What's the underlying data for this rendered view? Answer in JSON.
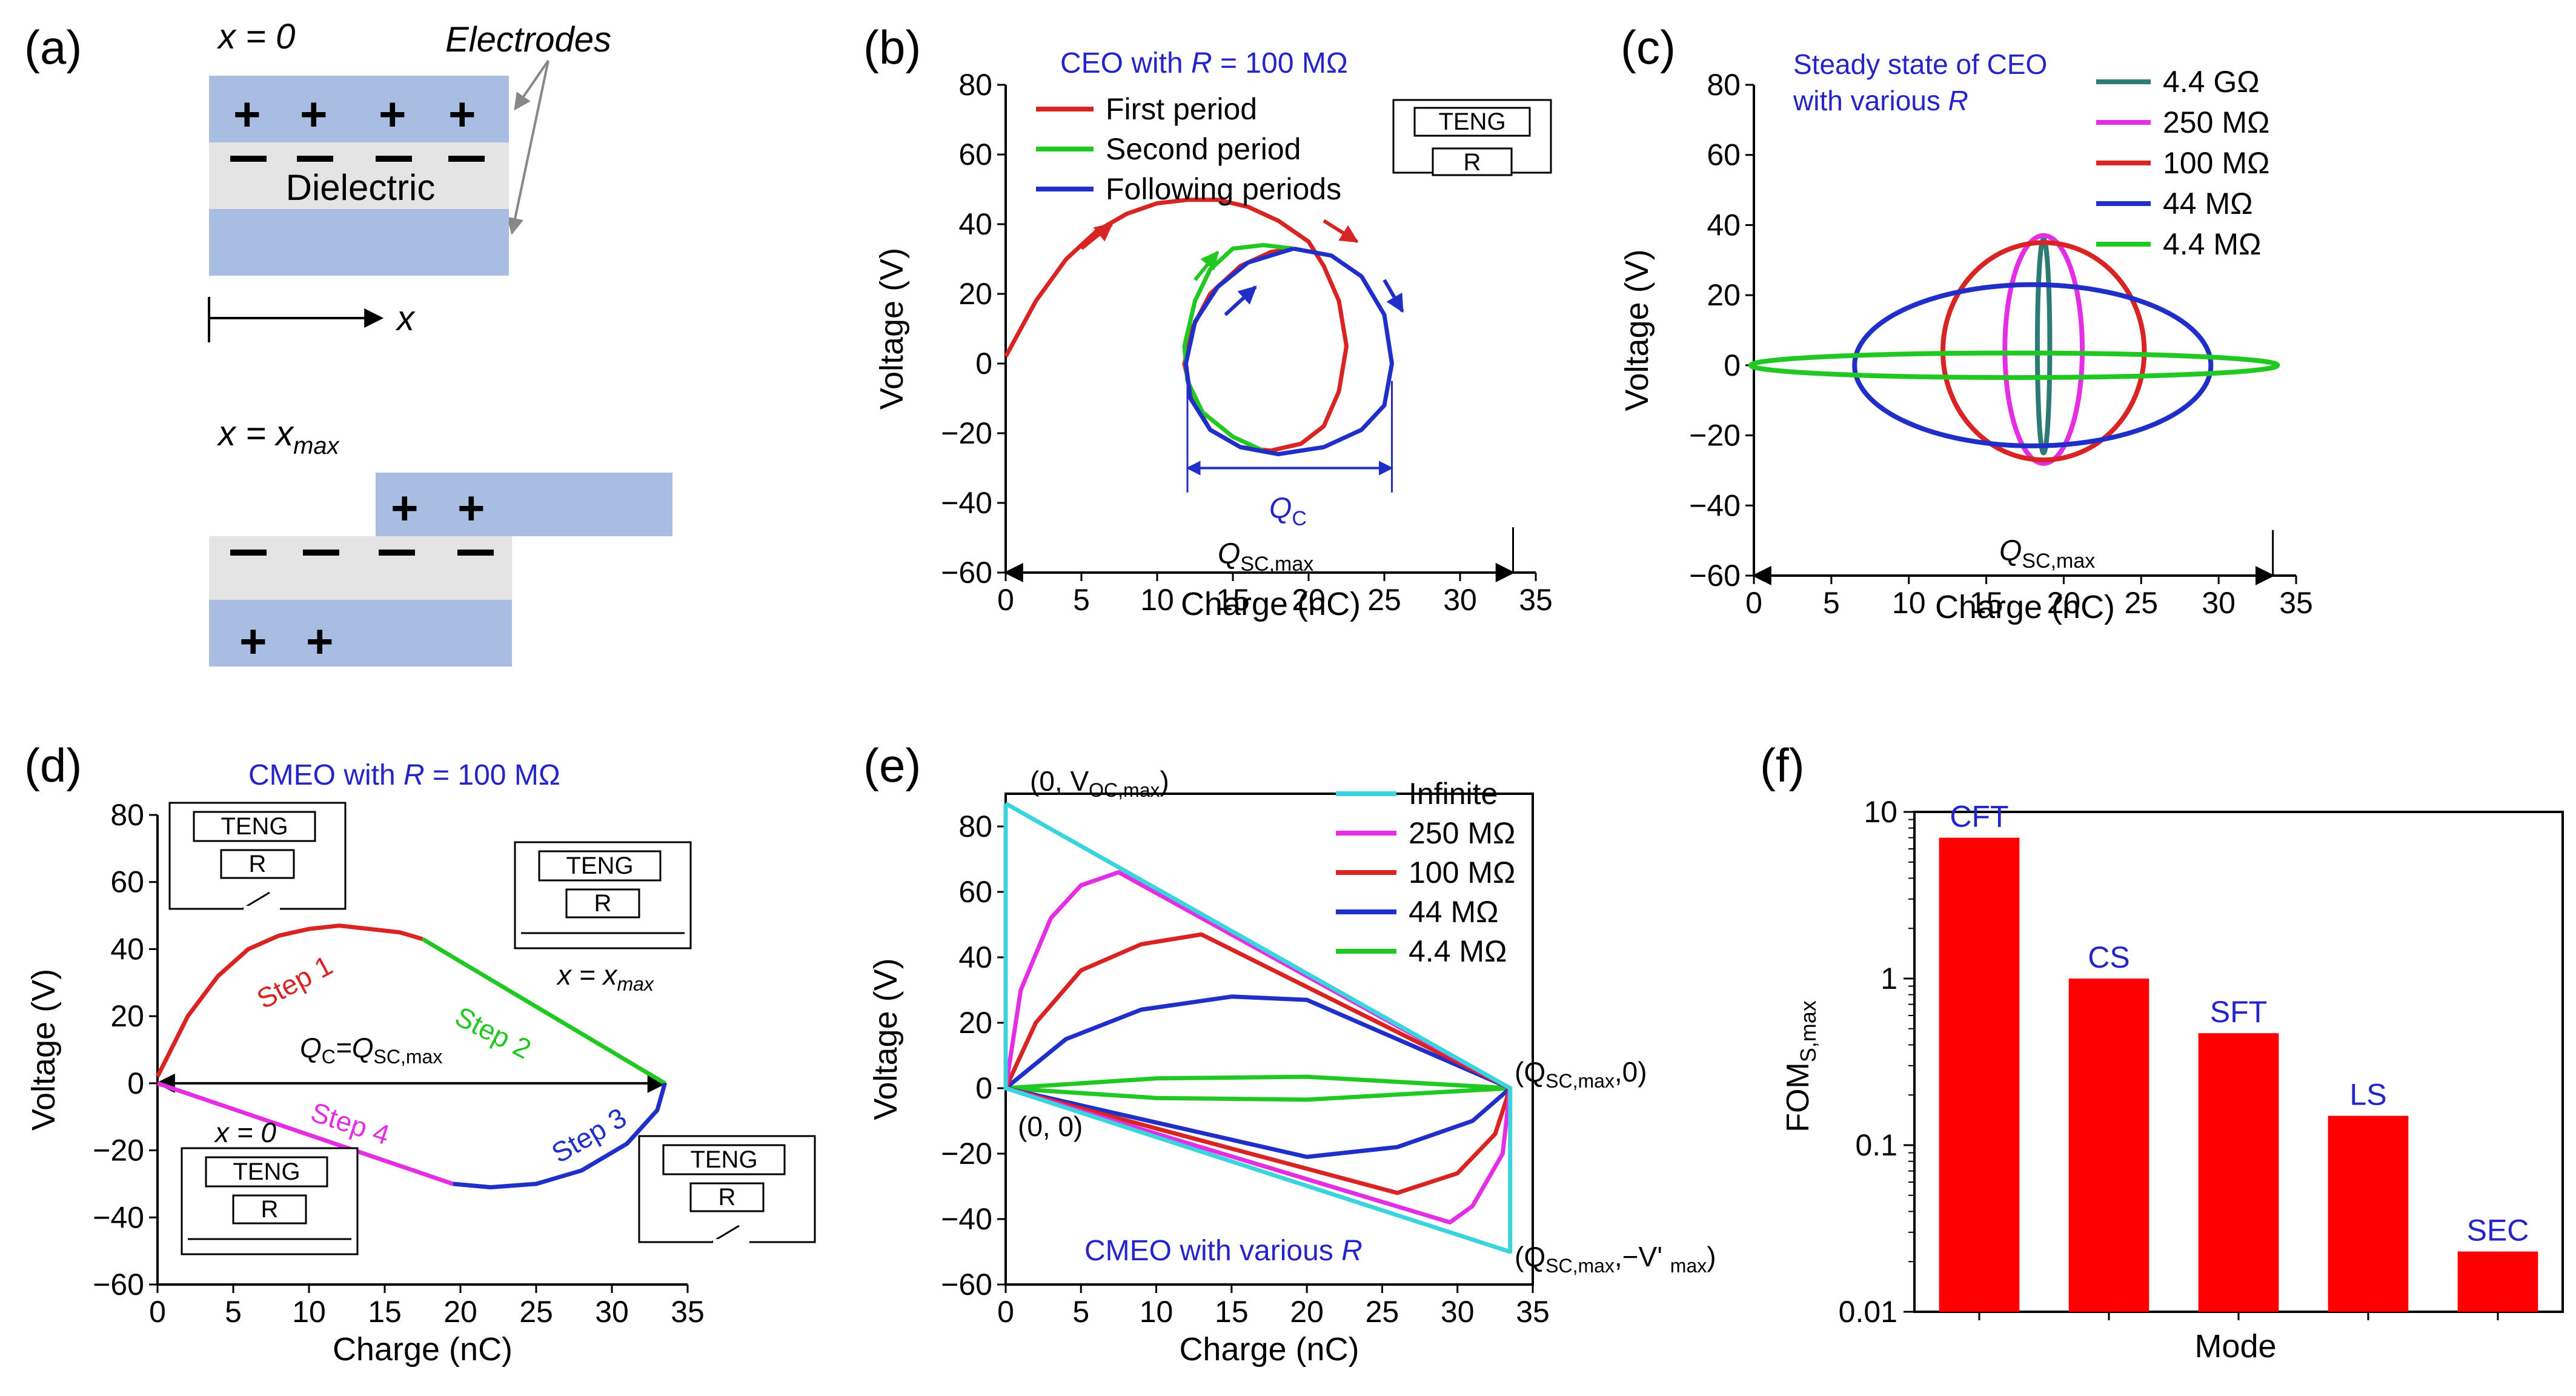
{
  "panel_labels": {
    "a": "(a)",
    "b": "(b)",
    "c": "(c)",
    "d": "(d)",
    "e": "(e)",
    "f": "(f)"
  },
  "panel_a": {
    "x0_label_var": "x",
    "x0_label_eq": " = 0",
    "electrodes": "Electrodes",
    "dielectric": "Dielectric",
    "x_axis_label": "x",
    "xmax_label_var": "x",
    "xmax_label_eq": " = x",
    "xmax_sub": "max",
    "plus": "+",
    "minus": "−"
  },
  "teng_box": {
    "teng": "TENG",
    "r": "R"
  },
  "common_axes": {
    "xlabel": "Charge (nC)",
    "ylabel": "Voltage (V)",
    "xticks": [
      "0",
      "5",
      "10",
      "15",
      "20",
      "25",
      "30",
      "35"
    ],
    "yticks": [
      "80",
      "60",
      "40",
      "20",
      "0",
      "−20",
      "−40",
      "−60"
    ]
  },
  "panel_b": {
    "title_pre": "CEO with ",
    "title_var": "R",
    "title_post": " = 100 MΩ",
    "qc_q": "Q",
    "qc_sub": "C",
    "qsc_q": "Q",
    "qsc_sub": "SC,max"
  },
  "panel_c": {
    "title_line1": "Steady state of CEO",
    "title_line2_pre": "with various ",
    "title_line2_var": "R",
    "qsc_q": "Q",
    "qsc_sub": "SC,max"
  },
  "panel_d": {
    "title_pre": "CMEO with ",
    "title_var": "R",
    "title_post": " = 100 MΩ",
    "qc_eq_a": "Q",
    "qc_eq_sub1": "C",
    "qc_eq_b": "=Q",
    "qc_eq_sub2": "SC,max",
    "x_eq_0": "x = 0",
    "x_eq_xmax_var": "x = x",
    "x_eq_xmax_sub": "max"
  },
  "panel_e": {
    "title_pre": "CMEO with various ",
    "title_var": "R",
    "lab_voc_a": "(0, V",
    "lab_voc_sub": "OC,max",
    "lab_voc_b": ")",
    "lab_origin": "(0, 0)",
    "lab_qsc_a": "(Q",
    "lab_qsc_sub": "SC,max",
    "lab_qsc_b": ",0)",
    "lab_qneg_a": "(Q",
    "lab_qneg_sub": "SC,max",
    "lab_qneg_b": ",−V' ",
    "lab_qneg_sub2": "max",
    "lab_qneg_c": ")"
  },
  "panel_f": {
    "ylabel_main": "FOM",
    "ylabel_sub": "S,max",
    "xlabel": "Mode",
    "yticks": [
      "10",
      "1",
      "0.1",
      "0.01"
    ]
  },
  "chart_data": [
    {
      "panel": "b",
      "type": "line",
      "title": "CEO with R = 100 MΩ",
      "xlabel": "Charge (nC)",
      "ylabel": "Voltage (V)",
      "xlim": [
        0,
        35
      ],
      "ylim": [
        -60,
        80
      ],
      "series": [
        {
          "name": "First period",
          "color": "#d92424",
          "points": [
            [
              0,
              2
            ],
            [
              2,
              18
            ],
            [
              4,
              30
            ],
            [
              6,
              38
            ],
            [
              8,
              43
            ],
            [
              10,
              46
            ],
            [
              12,
              47
            ],
            [
              14,
              47
            ],
            [
              16,
              45
            ],
            [
              18,
              41
            ],
            [
              20,
              35
            ],
            [
              21,
              28
            ],
            [
              22,
              18
            ],
            [
              22.5,
              5
            ],
            [
              22,
              -8
            ],
            [
              21,
              -18
            ],
            [
              19.5,
              -23
            ],
            [
              17.5,
              -25
            ],
            [
              15.5,
              -24
            ],
            [
              13.5,
              -19
            ],
            [
              12.3,
              -10
            ],
            [
              11.8,
              0
            ],
            [
              12.3,
              10
            ],
            [
              13.5,
              20
            ],
            [
              15.5,
              28
            ],
            [
              17.5,
              32
            ],
            [
              19,
              33
            ]
          ]
        },
        {
          "name": "Second period",
          "color": "#22c822",
          "points": [
            [
              19,
              33
            ],
            [
              17,
              34
            ],
            [
              15,
              33
            ],
            [
              13.5,
              27
            ],
            [
              12.5,
              18
            ],
            [
              11.8,
              5
            ],
            [
              12,
              -5
            ],
            [
              13,
              -14
            ],
            [
              15,
              -21
            ],
            [
              17,
              -25
            ]
          ]
        },
        {
          "name": "Following periods",
          "color": "#1f2fc8",
          "points": [
            [
              19,
              33
            ],
            [
              21.5,
              31
            ],
            [
              23.5,
              25
            ],
            [
              25,
              14
            ],
            [
              25.5,
              0
            ],
            [
              25,
              -12
            ],
            [
              23.5,
              -19
            ],
            [
              21,
              -24
            ],
            [
              18,
              -26
            ],
            [
              15.5,
              -24
            ],
            [
              13.5,
              -19
            ],
            [
              12.2,
              -10
            ],
            [
              11.9,
              0
            ],
            [
              12.5,
              12
            ],
            [
              14,
              22
            ],
            [
              16,
              29
            ],
            [
              19,
              33
            ]
          ]
        }
      ],
      "qc_nC": [
        12,
        25.5
      ],
      "qsc_max_nC": 33.5
    },
    {
      "panel": "c",
      "type": "line",
      "title": "Steady state of CEO with various R",
      "xlabel": "Charge (nC)",
      "ylabel": "Voltage (V)",
      "xlim": [
        0,
        35
      ],
      "ylim": [
        -60,
        80
      ],
      "series": [
        {
          "name": "4.4 GΩ",
          "color": "#2e7a74",
          "center": [
            18.7,
            5
          ],
          "half_width_nC": 0.4,
          "v_max": 36,
          "v_min": -25
        },
        {
          "name": "250 MΩ",
          "color": "#e42ee4",
          "center": [
            18.7,
            5
          ],
          "half_width_nC": 2.5,
          "v_max": 37,
          "v_min": -28
        },
        {
          "name": "100 MΩ",
          "color": "#d92424",
          "center": [
            18.7,
            5
          ],
          "half_width_nC": 6.5,
          "v_max": 35,
          "v_min": -27
        },
        {
          "name": "44 MΩ",
          "color": "#1f2fc8",
          "center": [
            18.0,
            0
          ],
          "half_width_nC": 11.5,
          "v_max": 23,
          "v_min": -23
        },
        {
          "name": "4.4 MΩ",
          "color": "#22c822",
          "center": [
            16.8,
            0
          ],
          "half_width_nC": 17.0,
          "v_max": 3.5,
          "v_min": -3.5
        }
      ],
      "qsc_max_nC": 33.5
    },
    {
      "panel": "d",
      "type": "line",
      "title": "CMEO with R = 100 MΩ",
      "xlabel": "Charge (nC)",
      "ylabel": "Voltage (V)",
      "xlim": [
        0,
        35
      ],
      "ylim": [
        -60,
        80
      ],
      "series": [
        {
          "name": "Step 1",
          "color": "#d92424",
          "points": [
            [
              0,
              2
            ],
            [
              2,
              20
            ],
            [
              4,
              32
            ],
            [
              6,
              40
            ],
            [
              8,
              44
            ],
            [
              10,
              46
            ],
            [
              12,
              47
            ],
            [
              14,
              46
            ],
            [
              16,
              45
            ],
            [
              17.5,
              43
            ]
          ]
        },
        {
          "name": "Step 2",
          "color": "#22c822",
          "points": [
            [
              17.5,
              43
            ],
            [
              33.5,
              0
            ]
          ]
        },
        {
          "name": "Step 3",
          "color": "#1f2fc8",
          "points": [
            [
              33.5,
              0
            ],
            [
              33,
              -8
            ],
            [
              31,
              -18
            ],
            [
              28,
              -26
            ],
            [
              25,
              -30
            ],
            [
              22,
              -31
            ],
            [
              19.5,
              -30
            ]
          ]
        },
        {
          "name": "Step 4",
          "color": "#e42ee4",
          "points": [
            [
              19.5,
              -30
            ],
            [
              0,
              0
            ]
          ]
        }
      ],
      "qc_equals_qsc_max_nC": 33.5
    },
    {
      "panel": "e",
      "type": "line",
      "title": "CMEO with various R",
      "xlabel": "Charge (nC)",
      "ylabel": "Voltage (V)",
      "xlim": [
        0,
        35
      ],
      "ylim": [
        -60,
        90
      ],
      "series": [
        {
          "name": "Infinite",
          "color": "#3cd4dc",
          "points": [
            [
              0,
              87
            ],
            [
              33.5,
              0
            ],
            [
              33.5,
              -50
            ],
            [
              0,
              0
            ],
            [
              0,
              87
            ]
          ]
        },
        {
          "name": "250 MΩ",
          "color": "#e42ee4",
          "points": [
            [
              0,
              0
            ],
            [
              1,
              30
            ],
            [
              3,
              52
            ],
            [
              5,
              62
            ],
            [
              7.5,
              66
            ],
            [
              33.5,
              0
            ],
            [
              33,
              -20
            ],
            [
              31,
              -36
            ],
            [
              29.5,
              -41
            ],
            [
              0,
              0
            ]
          ]
        },
        {
          "name": "100 MΩ",
          "color": "#d92424",
          "points": [
            [
              0,
              0
            ],
            [
              2,
              20
            ],
            [
              5,
              36
            ],
            [
              9,
              44
            ],
            [
              13,
              47
            ],
            [
              33.5,
              0
            ],
            [
              32.5,
              -14
            ],
            [
              30,
              -26
            ],
            [
              26,
              -32
            ],
            [
              0,
              0
            ]
          ]
        },
        {
          "name": "44 MΩ",
          "color": "#1f2fc8",
          "points": [
            [
              0,
              0
            ],
            [
              4,
              15
            ],
            [
              9,
              24
            ],
            [
              15,
              28
            ],
            [
              20,
              27
            ],
            [
              33.5,
              0
            ],
            [
              31,
              -10
            ],
            [
              26,
              -18
            ],
            [
              20,
              -21
            ],
            [
              0,
              0
            ]
          ]
        },
        {
          "name": "4.4 MΩ",
          "color": "#22c822",
          "points": [
            [
              0,
              0
            ],
            [
              10,
              3
            ],
            [
              20,
              3.5
            ],
            [
              33.5,
              0
            ],
            [
              20,
              -3.5
            ],
            [
              10,
              -3
            ],
            [
              0,
              0
            ]
          ]
        }
      ]
    },
    {
      "panel": "f",
      "type": "bar",
      "yscale": "log",
      "ylabel": "FOM_S,max",
      "xlabel": "Mode",
      "ylim": [
        0.01,
        10
      ],
      "categories": [
        "CFT",
        "CS",
        "SFT",
        "LS",
        "SEC"
      ],
      "values": [
        7,
        1,
        0.47,
        0.15,
        0.023
      ],
      "bar_color": "#ff0000",
      "label_color": "#2424c8"
    }
  ]
}
